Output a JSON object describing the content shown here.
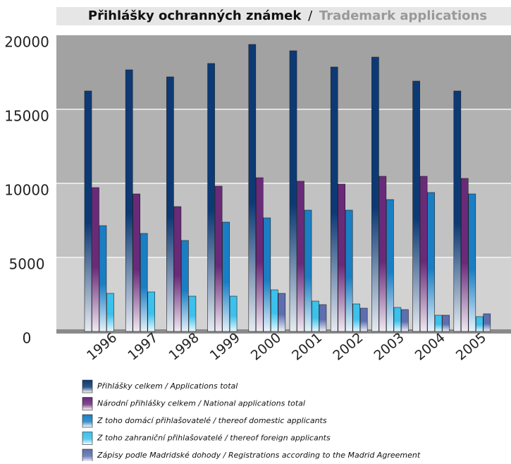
{
  "chart_data": {
    "type": "bar",
    "title_parts": [
      "Přihlášky ochranných známek",
      "/",
      "Trademark applications"
    ],
    "categories": [
      "1996",
      "1997",
      "1998",
      "1999",
      "2000",
      "2001",
      "2002",
      "2003",
      "2004",
      "2005"
    ],
    "series": [
      {
        "name": "Přihlášky celkem / Applications total",
        "color": "#0d3a75",
        "values": [
          16238,
          17667,
          17190,
          18095,
          19381,
          18952,
          17857,
          18524,
          16905,
          16238
        ]
      },
      {
        "name": "Národní přihlášky celkem / National applications total",
        "color": "#6a2a7a",
        "values": [
          9714,
          9286,
          8429,
          9810,
          10381,
          10143,
          9952,
          10476,
          10476,
          10333
        ]
      },
      {
        "name": "Z toho domácí přihlašovatelé / thereof domestic applicants",
        "color": "#1a7ec4",
        "values": [
          7143,
          6619,
          6143,
          7381,
          7667,
          8190,
          8190,
          8905,
          9381,
          9286
        ]
      },
      {
        "name": "Z toho zahraniční přihlašovatelé / thereof foreign applicants",
        "color": "#3cc0ec",
        "values": [
          2571,
          2667,
          2381,
          2381,
          2810,
          2048,
          1857,
          1619,
          1095,
          1000
        ]
      },
      {
        "name": "Zápisy podle Madridské dohody / Registrations according to the Madrid Agreement",
        "color": "#5d6fb0",
        "values": [
          null,
          null,
          null,
          null,
          2571,
          1810,
          1571,
          1476,
          1095,
          1190
        ]
      }
    ],
    "ylim": [
      0,
      20000
    ],
    "yticks": [
      0,
      5000,
      10000,
      15000,
      20000
    ],
    "grid": true
  }
}
